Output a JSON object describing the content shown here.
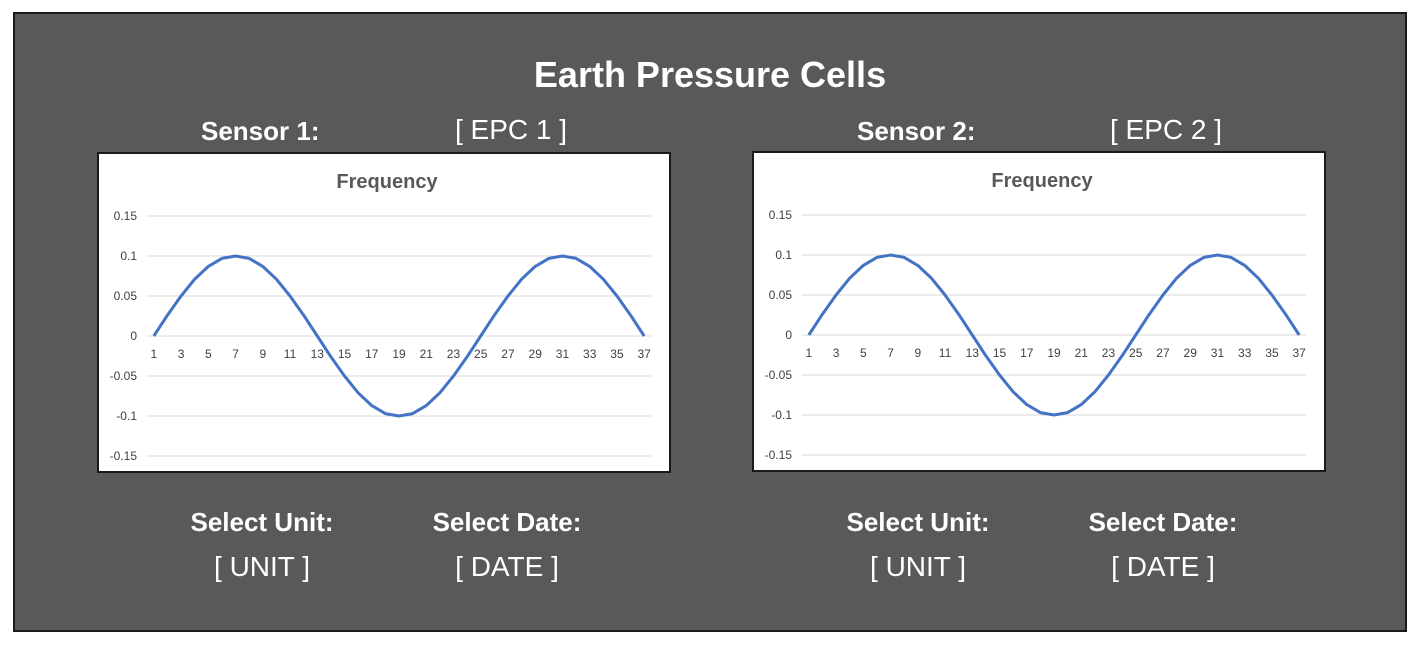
{
  "title": "Earth Pressure Cells",
  "colors": {
    "panel": "#595959",
    "line": "#4472C4",
    "grid": "#d9d9d9",
    "text": "#ffffff"
  },
  "sensors": [
    {
      "label": "Sensor 1:",
      "value": "[ EPC 1 ]",
      "unit_label": "Select Unit:",
      "unit_value": "[ UNIT ]",
      "date_label": "Select Date:",
      "date_value": "[ DATE ]"
    },
    {
      "label": "Sensor 2:",
      "value": "[ EPC 2 ]",
      "unit_label": "Select Unit:",
      "unit_value": "[ UNIT ]",
      "date_label": "Select Date:",
      "date_value": "[ DATE ]"
    }
  ],
  "chart_data": [
    {
      "type": "line",
      "title": "Frequency",
      "x": [
        1,
        2,
        3,
        4,
        5,
        6,
        7,
        8,
        9,
        10,
        11,
        12,
        13,
        14,
        15,
        16,
        17,
        18,
        19,
        20,
        21,
        22,
        23,
        24,
        25,
        26,
        27,
        28,
        29,
        30,
        31,
        32,
        33,
        34,
        35,
        36,
        37
      ],
      "x_tick_labels": [
        "1",
        "3",
        "5",
        "7",
        "9",
        "11",
        "13",
        "15",
        "17",
        "19",
        "21",
        "23",
        "25",
        "27",
        "29",
        "31",
        "33",
        "35",
        "37"
      ],
      "series": [
        {
          "values": [
            0,
            0.026,
            0.05,
            0.071,
            0.087,
            0.097,
            0.1,
            0.097,
            0.087,
            0.071,
            0.05,
            0.026,
            0,
            -0.026,
            -0.05,
            -0.071,
            -0.087,
            -0.097,
            -0.1,
            -0.097,
            -0.087,
            -0.071,
            -0.05,
            -0.026,
            0,
            0.026,
            0.05,
            0.071,
            0.087,
            0.097,
            0.1,
            0.097,
            0.087,
            0.071,
            0.05,
            0.026,
            0
          ]
        }
      ],
      "y_ticks": [
        "0.15",
        "0.1",
        "0.05",
        "0",
        "-0.05",
        "-0.1",
        "-0.15"
      ],
      "ylim": [
        -0.15,
        0.15
      ],
      "grid": true
    },
    {
      "type": "line",
      "title": "Frequency",
      "x": [
        1,
        2,
        3,
        4,
        5,
        6,
        7,
        8,
        9,
        10,
        11,
        12,
        13,
        14,
        15,
        16,
        17,
        18,
        19,
        20,
        21,
        22,
        23,
        24,
        25,
        26,
        27,
        28,
        29,
        30,
        31,
        32,
        33,
        34,
        35,
        36,
        37
      ],
      "x_tick_labels": [
        "1",
        "3",
        "5",
        "7",
        "9",
        "11",
        "13",
        "15",
        "17",
        "19",
        "21",
        "23",
        "25",
        "27",
        "29",
        "31",
        "33",
        "35",
        "37"
      ],
      "series": [
        {
          "values": [
            0,
            0.026,
            0.05,
            0.071,
            0.087,
            0.097,
            0.1,
            0.097,
            0.087,
            0.071,
            0.05,
            0.026,
            0,
            -0.026,
            -0.05,
            -0.071,
            -0.087,
            -0.097,
            -0.1,
            -0.097,
            -0.087,
            -0.071,
            -0.05,
            -0.026,
            0,
            0.026,
            0.05,
            0.071,
            0.087,
            0.097,
            0.1,
            0.097,
            0.087,
            0.071,
            0.05,
            0.026,
            0
          ]
        }
      ],
      "y_ticks": [
        "0.15",
        "0.1",
        "0.05",
        "0",
        "-0.05",
        "-0.1",
        "-0.15"
      ],
      "ylim": [
        -0.15,
        0.15
      ],
      "grid": true
    }
  ]
}
